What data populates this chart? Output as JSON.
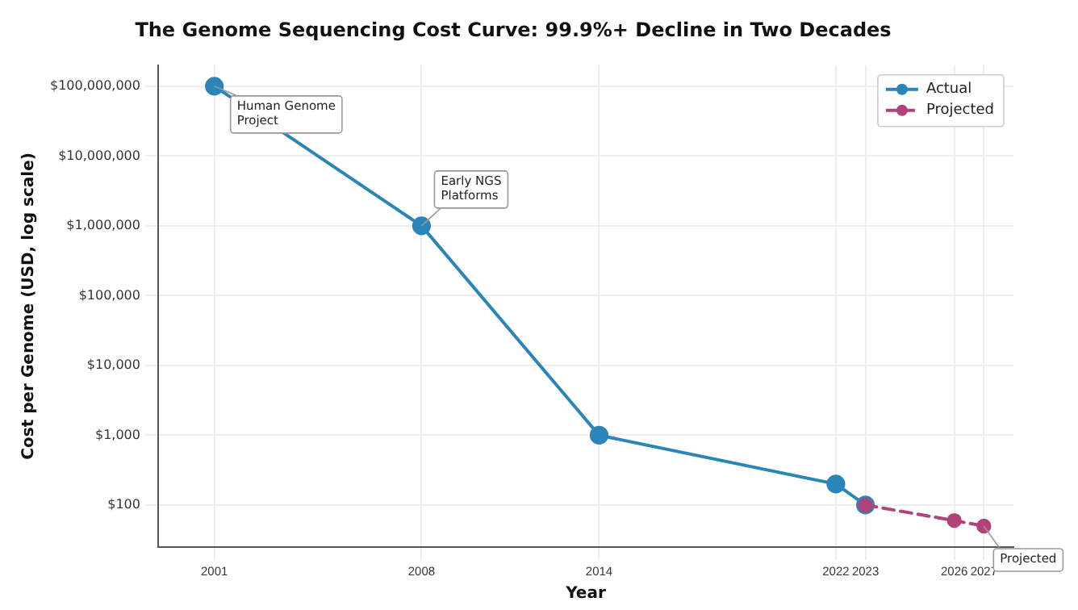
{
  "chart_data": {
    "type": "line",
    "title": "The Genome Sequencing Cost Curve: 99.9%+ Decline in Two Decades",
    "xlabel": "Year",
    "ylabel": "Cost per Genome (USD, log scale)",
    "series": [
      {
        "name": "Actual",
        "color": "#2a86b8",
        "x": [
          2001,
          2008,
          2014,
          2022,
          2023
        ],
        "values": [
          100000000,
          1000000,
          1000,
          200,
          100
        ],
        "line_style": "solid"
      },
      {
        "name": "Projected",
        "color": "#b0437a",
        "x": [
          2023,
          2026,
          2027
        ],
        "values": [
          100,
          60,
          50
        ],
        "line_style": "dashed"
      }
    ],
    "log": true,
    "xlim": [
      1999.1,
      2028
    ],
    "xticks": [
      2001,
      2008,
      2014,
      2022,
      2023,
      2026,
      2027
    ],
    "ylim": [
      25,
      200000000
    ],
    "yticks": [
      {
        "value": 100,
        "label": "$100"
      },
      {
        "value": 1000,
        "label": "$1,000"
      },
      {
        "value": 10000,
        "label": "$10,000"
      },
      {
        "value": 100000,
        "label": "$100,000"
      },
      {
        "value": 1000000,
        "label": "$1,000,000"
      },
      {
        "value": 10000000,
        "label": "$10,000,000"
      },
      {
        "value": 100000000,
        "label": "$100,000,000"
      }
    ],
    "grid": true,
    "legend": "top right",
    "marker": "circle",
    "annotations": [
      {
        "text": "Human Genome Project",
        "x": 2001,
        "y": 100000000
      },
      {
        "text": "Early NGS Platforms",
        "x": 2008,
        "y": 1000000
      },
      {
        "text": "Projected",
        "x": 2027,
        "y": 50
      }
    ]
  }
}
